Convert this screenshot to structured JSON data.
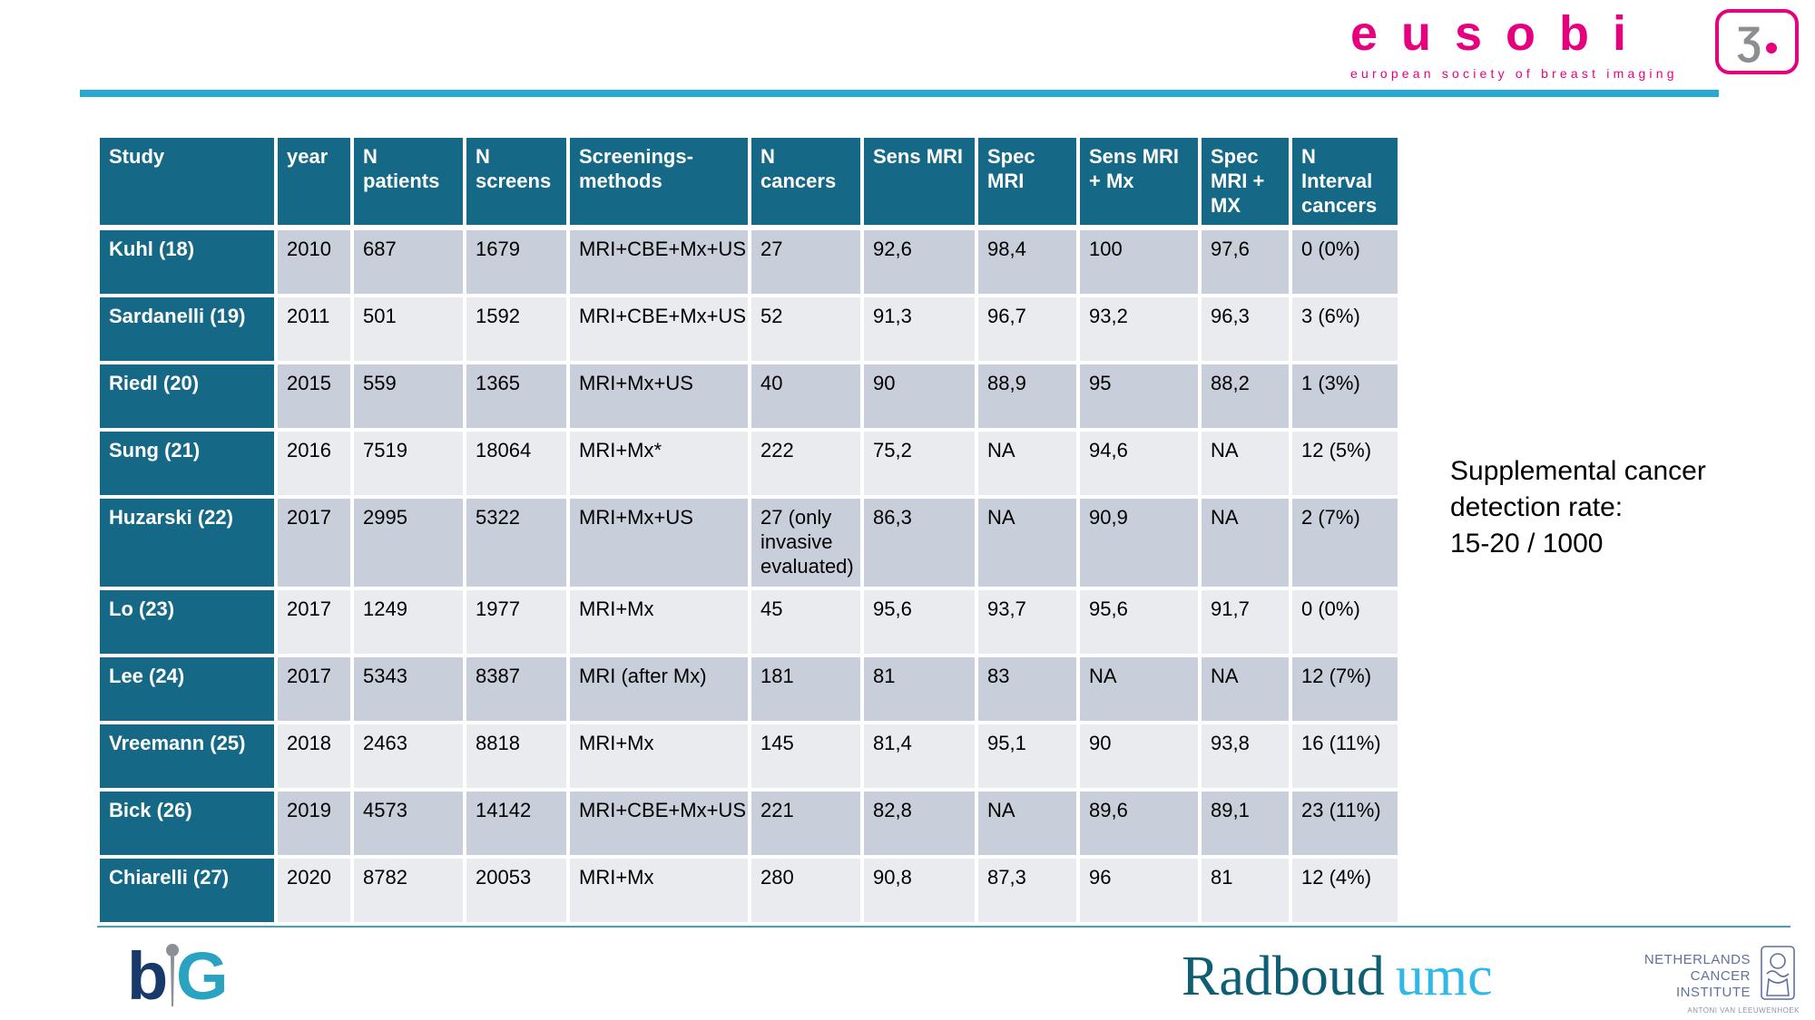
{
  "colors": {
    "table_header_blue": "#166986",
    "row_dark_gray": "#C8CFDA",
    "row_light_gray": "#E9EBEF",
    "top_rule_cyan": "#29A9D2",
    "eusobi_magenta": "#E6007E",
    "radboud_dark_teal": "#0E5F73",
    "radboud_cyan": "#2FB8E8",
    "big_navy": "#173A6A",
    "big_teal": "#2AA3C2"
  },
  "eusobi": {
    "wordmark": "eusobi",
    "tagline": "european society of breast imaging",
    "emblem_glyph": "Ʒ"
  },
  "side_note": {
    "lines": [
      "Supplemental cancer",
      "detection rate:",
      "15-20 / 1000"
    ]
  },
  "table": {
    "columns": [
      "Study",
      "year",
      "N patients",
      "N screens",
      "Screenings-methods",
      "N cancers",
      "Sens MRI",
      "Spec MRI",
      "Sens MRI + Mx",
      "Spec MRI + MX",
      "N Interval cancers"
    ],
    "rows": [
      [
        "Kuhl (18)",
        "2010",
        "687",
        "1679",
        "MRI+CBE+Mx+US",
        "27",
        "92,6",
        "98,4",
        "100",
        "97,6",
        "0 (0%)"
      ],
      [
        "Sardanelli (19)",
        "2011",
        "501",
        "1592",
        "MRI+CBE+Mx+US",
        "52",
        "91,3",
        "96,7",
        "93,2",
        "96,3",
        "3 (6%)"
      ],
      [
        "Riedl (20)",
        "2015",
        "559",
        "1365",
        "MRI+Mx+US",
        "40",
        "90",
        "88,9",
        "95",
        "88,2",
        "1 (3%)"
      ],
      [
        "Sung (21)",
        "2016",
        "7519",
        "18064",
        "MRI+Mx*",
        "222",
        "75,2",
        "NA",
        "94,6",
        "NA",
        "12 (5%)"
      ],
      [
        "Huzarski (22)",
        "2017",
        "2995",
        "5322",
        "MRI+Mx+US",
        "27 (only invasive evaluated)",
        "86,3",
        "NA",
        "90,9",
        "NA",
        "2 (7%)"
      ],
      [
        "Lo (23)",
        "2017",
        "1249",
        "1977",
        "MRI+Mx",
        "45",
        "95,6",
        "93,7",
        "95,6",
        "91,7",
        "0 (0%)"
      ],
      [
        "Lee (24)",
        "2017",
        "5343",
        "8387",
        "MRI (after Mx)",
        "181",
        "81",
        "83",
        "NA",
        "NA",
        "12 (7%)"
      ],
      [
        "Vreemann (25)",
        "2018",
        "2463",
        "8818",
        "MRI+Mx",
        "145",
        "81,4",
        "95,1",
        "90",
        "93,8",
        "16 (11%)"
      ],
      [
        "Bick (26)",
        "2019",
        "4573",
        "14142",
        "MRI+CBE+Mx+US",
        "221",
        "82,8",
        "NA",
        "89,6",
        "89,1",
        "23 (11%)"
      ],
      [
        "Chiarelli (27)",
        "2020",
        "8782",
        "20053",
        "MRI+Mx",
        "280",
        "90,8",
        "87,3",
        "96",
        "81",
        "12 (4%)"
      ]
    ]
  },
  "footer": {
    "big": {
      "letter_b": "b",
      "letter_g": "G"
    },
    "radboud": {
      "word": "Radboud",
      "suffix": "umc"
    },
    "nki": {
      "lines": [
        "NETHERLANDS",
        "CANCER",
        "INSTITUTE"
      ],
      "subline": "ANTONI VAN LEEUWENHOEK"
    }
  }
}
